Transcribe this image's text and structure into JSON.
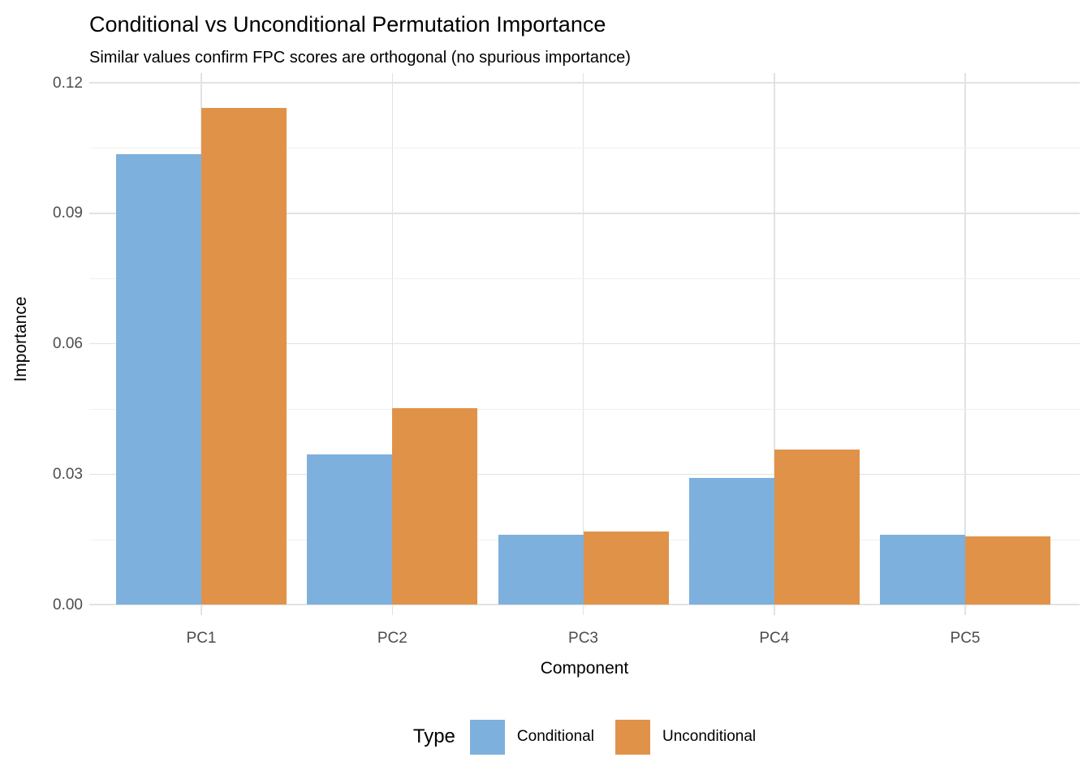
{
  "chart_data": {
    "type": "bar",
    "bar_mode": "grouped",
    "title": "Conditional vs Unconditional Permutation Importance",
    "subtitle": "Similar values confirm FPC scores are orthogonal (no spurious importance)",
    "xlabel": "Component",
    "ylabel": "Importance",
    "categories": [
      "PC1",
      "PC2",
      "PC3",
      "PC4",
      "PC5"
    ],
    "series": [
      {
        "name": "Conditional",
        "color": "#7DB0DD",
        "values": [
          0.1035,
          0.0345,
          0.016,
          0.0292,
          0.016
        ]
      },
      {
        "name": "Unconditional",
        "color": "#E09249",
        "values": [
          0.1143,
          0.0451,
          0.0168,
          0.0357,
          0.0157
        ]
      }
    ],
    "ylim": [
      0,
      0.12
    ],
    "yticks": [
      0,
      0.03,
      0.06,
      0.09,
      0.12
    ],
    "ytick_labels": [
      "0.00",
      "0.03",
      "0.06",
      "0.09",
      "0.12"
    ],
    "yticks_minor": [
      0.015,
      0.045,
      0.075,
      0.105
    ],
    "grid": "horizontal major+minor, vertical at categories",
    "legend": {
      "title": "Type",
      "position": "bottom"
    }
  }
}
